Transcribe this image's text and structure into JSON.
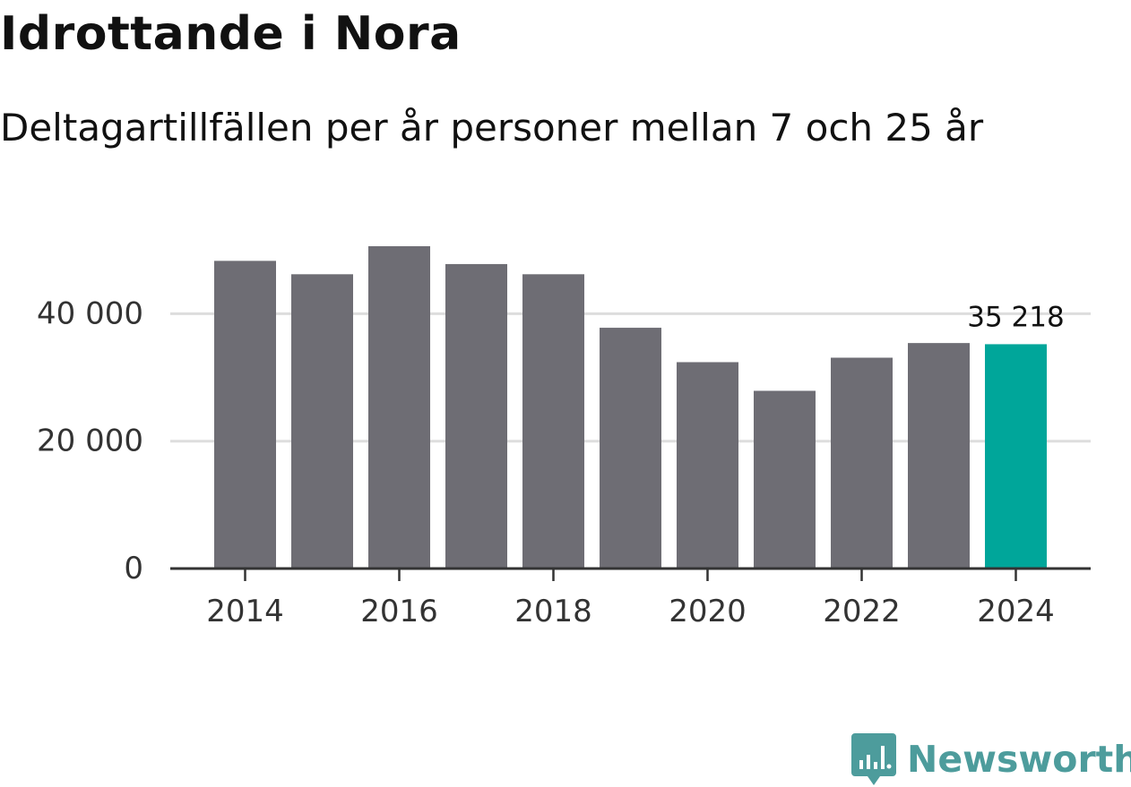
{
  "title": "Idrottande i Nora",
  "subtitle": "Deltagartillfällen per år personer mellan 7 och 25 år",
  "brand": {
    "name": "Newsworthy",
    "icon": "newsworthy-logo-icon",
    "color": "#4d9c9c"
  },
  "colors": {
    "bar": "#6e6d74",
    "highlight": "#00a69a",
    "grid": "#dddddd",
    "axis": "#333333"
  },
  "chart_data": {
    "type": "bar",
    "title": "Idrottande i Nora",
    "subtitle": "Deltagartillfällen per år personer mellan 7 och 25 år",
    "xlabel": "",
    "ylabel": "",
    "categories": [
      2014,
      2015,
      2016,
      2017,
      2018,
      2019,
      2020,
      2021,
      2022,
      2023,
      2024
    ],
    "values": [
      48300,
      46200,
      50600,
      47800,
      46200,
      37800,
      32400,
      27900,
      33100,
      35400,
      35218
    ],
    "highlight_index": 10,
    "highlight_label": "35 218",
    "xticks": [
      2014,
      2016,
      2018,
      2020,
      2022,
      2024
    ],
    "xtick_labels": [
      "2014",
      "2016",
      "2018",
      "2020",
      "2022",
      "2024"
    ],
    "yticks": [
      0,
      20000,
      40000
    ],
    "ytick_labels": [
      "0",
      "20 000",
      "40 000"
    ],
    "ylim": [
      0,
      50600
    ],
    "grid": true
  }
}
